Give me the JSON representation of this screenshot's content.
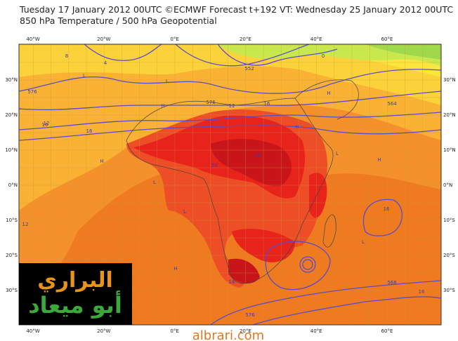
{
  "header": {
    "line1": "Tuesday 17 January 2012 00UTC ©ECMWF Forecast t+192 VT: Wednesday 25 January 2012 00UTC",
    "line2": "850 hPa Temperature / 500 hPa Geopotential"
  },
  "map": {
    "longitude_labels": [
      "40°W",
      "20°W",
      "0°E",
      "20°E",
      "40°E",
      "60°E"
    ],
    "latitude_labels": [
      "30°N",
      "20°N",
      "10°N",
      "0°N",
      "10°S",
      "20°S",
      "30°S"
    ],
    "contour_labels": [
      "576",
      "16",
      "12",
      "8",
      "4",
      "0",
      "564",
      "552",
      "576",
      "12",
      "16",
      "20",
      "24",
      "16",
      "16",
      "12",
      "16",
      "576",
      "568",
      "16"
    ],
    "pressure_marks": [
      "H",
      "L",
      "H",
      "L",
      "H",
      "L",
      "H",
      "L",
      "H",
      "L",
      "H",
      "L"
    ]
  },
  "logo": {
    "line1": "البراري",
    "line2": "أبو ميعاد"
  },
  "watermark": "albrari.com"
}
